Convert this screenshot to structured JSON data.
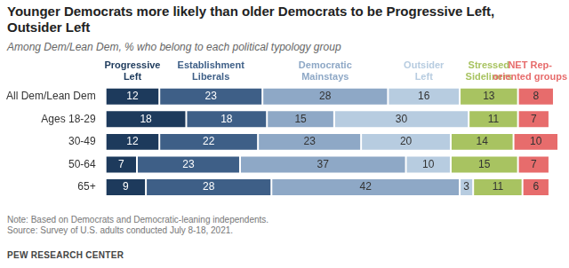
{
  "chart_data": {
    "type": "bar",
    "title": "Younger Democrats more likely than older Democrats to be Progressive Left, Outsider Left",
    "subtitle": "Among Dem/Lean Dem, % who belong to each political typology group",
    "note": "Note: Based on Democrats and Democratic-leaning independents.",
    "source": "Source: Survey of U.S. adults conducted July 8-18, 2021.",
    "credit": "PEW RESEARCH CENTER",
    "orientation": "horizontal",
    "stacked": true,
    "data_labels": true,
    "tick_labels": "y",
    "grid": false,
    "xlim": [
      0,
      101
    ],
    "categories": [
      "All Dem/Lean Dem",
      "Ages 18-29",
      "30-49",
      "50-64",
      "65+"
    ],
    "series": [
      {
        "name": "Progressive Left",
        "color": "#1d3a5c",
        "values": [
          12,
          18,
          12,
          7,
          9
        ]
      },
      {
        "name": "Establishment Liberals",
        "color": "#3e5f87",
        "values": [
          23,
          18,
          22,
          23,
          28
        ]
      },
      {
        "name": "Democratic Mainstays",
        "color": "#8ea8c6",
        "values": [
          28,
          15,
          23,
          37,
          42
        ]
      },
      {
        "name": "Outsider Left",
        "color": "#b7cce0",
        "values": [
          16,
          30,
          20,
          10,
          3
        ]
      },
      {
        "name": "Stressed Sideliners",
        "color": "#a8c361",
        "values": [
          13,
          11,
          14,
          15,
          11
        ]
      },
      {
        "name": "NET Rep-oriented groups",
        "color": "#e76c6c",
        "values": [
          8,
          7,
          10,
          7,
          6
        ]
      }
    ]
  }
}
